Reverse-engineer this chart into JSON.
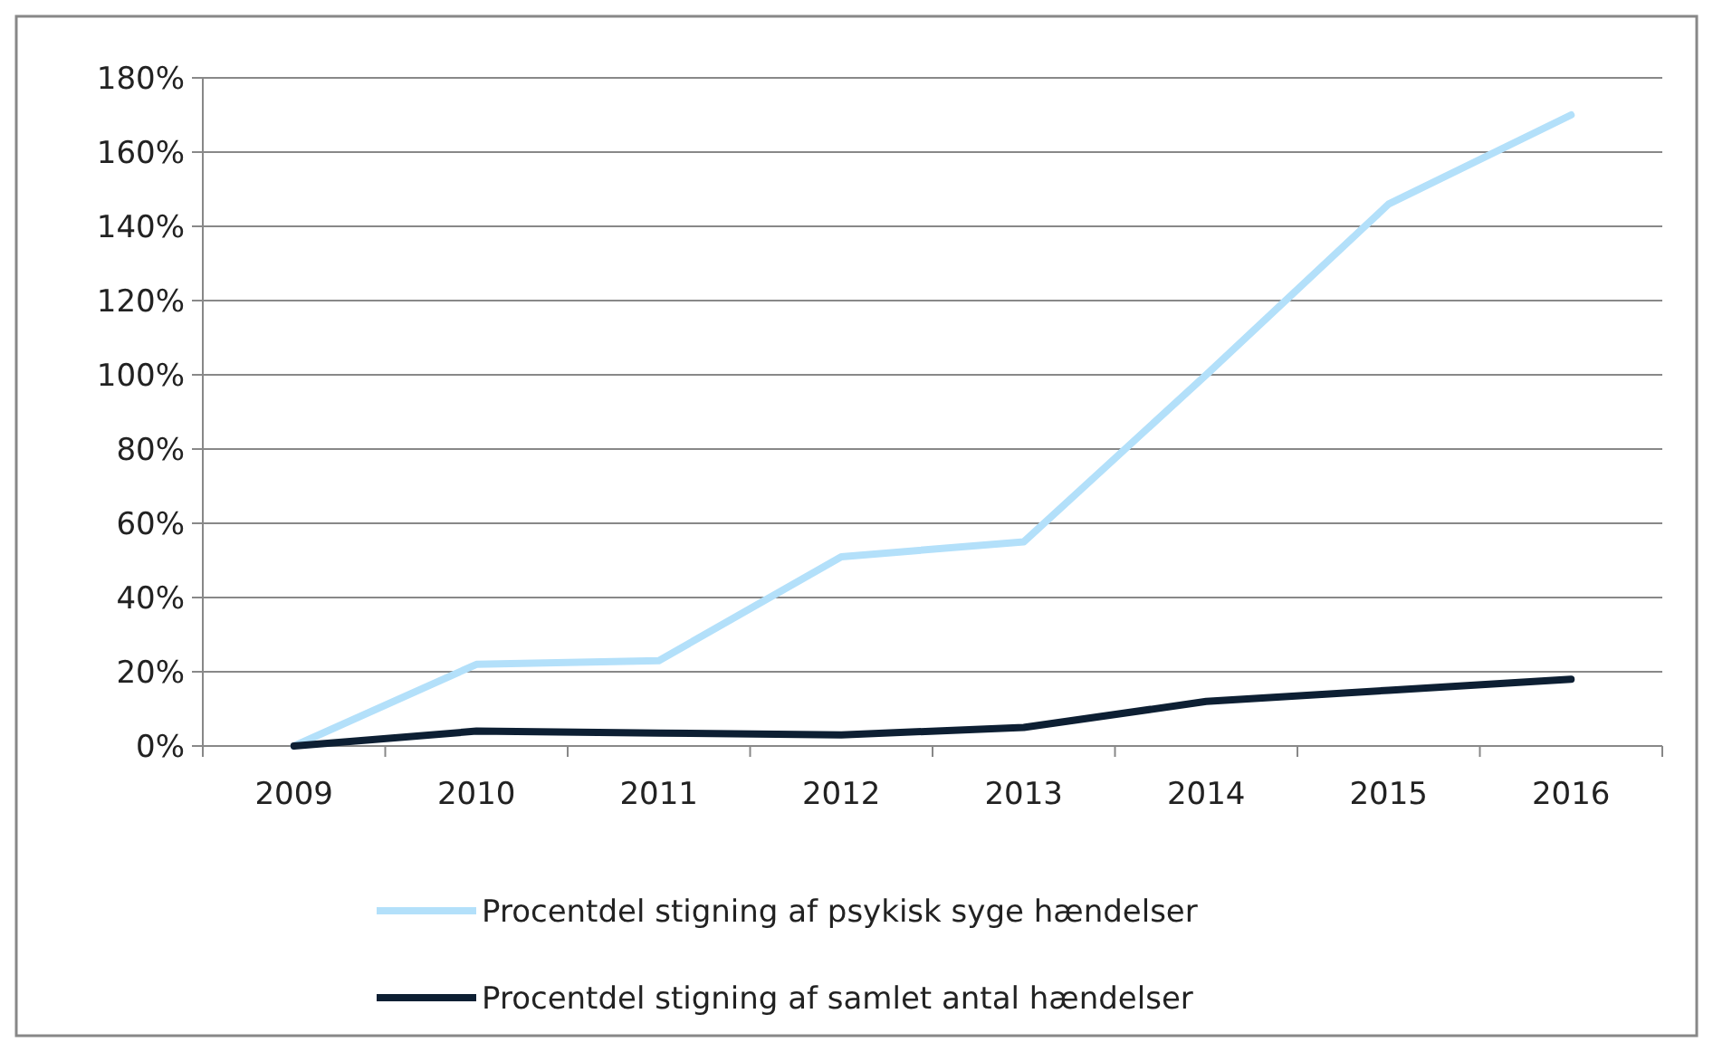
{
  "chart_data": {
    "type": "line",
    "categories": [
      "2009",
      "2010",
      "2011",
      "2012",
      "2013",
      "2014",
      "2015",
      "2016"
    ],
    "series": [
      {
        "name": "Procentdel stigning af psykisk syge hændelser",
        "color": "#b3e0fa",
        "values": [
          0,
          22,
          23,
          51,
          55,
          100,
          146,
          170
        ]
      },
      {
        "name": "Procentdel stigning af samlet antal hændelser",
        "color": "#0d1f33",
        "values": [
          0,
          4,
          3.5,
          3,
          5,
          12,
          15,
          18
        ]
      }
    ],
    "ylim": [
      0,
      180
    ],
    "yticks": [
      {
        "value": 0,
        "label": "0%"
      },
      {
        "value": 20,
        "label": "20%"
      },
      {
        "value": 40,
        "label": "40%"
      },
      {
        "value": 60,
        "label": "60%"
      },
      {
        "value": 80,
        "label": "80%"
      },
      {
        "value": 100,
        "label": "100%"
      },
      {
        "value": 120,
        "label": "120%"
      },
      {
        "value": 140,
        "label": "140%"
      },
      {
        "value": 160,
        "label": "160%"
      },
      {
        "value": 180,
        "label": "180%"
      }
    ],
    "grid": "y",
    "legend": "bottom",
    "marker": "none",
    "line_style": "solid"
  }
}
